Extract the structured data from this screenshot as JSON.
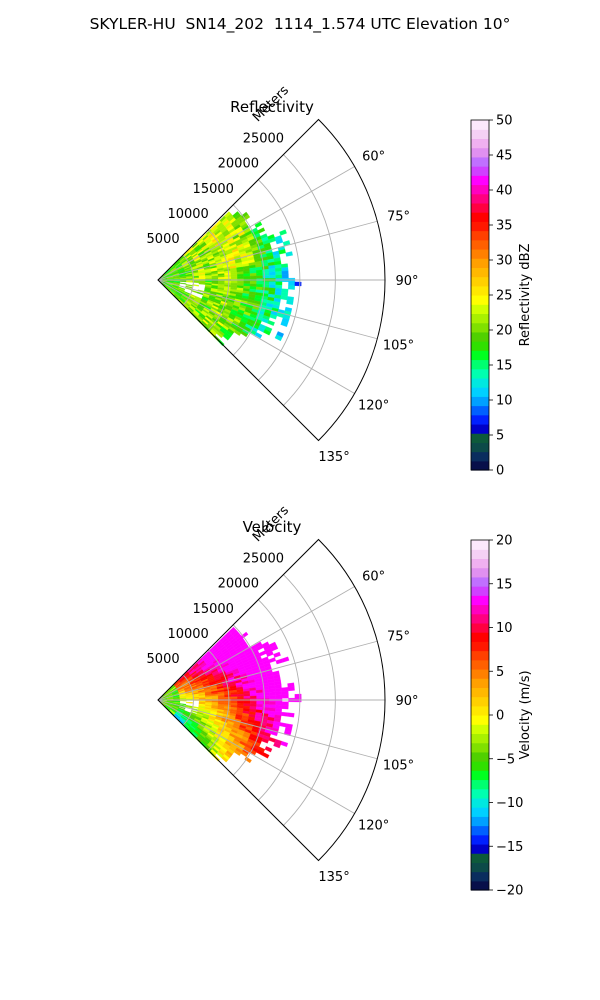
{
  "title": "SKYLER-HU  SN14_202  1114_1.574 UTC Elevation 10°",
  "chart_data": [
    {
      "type": "heatmap",
      "subtype": "polar-sector",
      "title": "Reflectivity",
      "radial_label": "Meters",
      "radial_ticks": [
        "5000",
        "10000",
        "15000",
        "20000",
        "25000"
      ],
      "rmax": 32000,
      "theta_range_deg": [
        45,
        135
      ],
      "angle_ticks": [
        "60°",
        "75°",
        "90°",
        "105°",
        "120°",
        "135°"
      ],
      "grid": true,
      "colorbar": {
        "label": "Reflectivity dBZ",
        "min": 0,
        "max": 50,
        "ticks": [
          "0",
          "5",
          "10",
          "15",
          "20",
          "25",
          "30",
          "35",
          "40",
          "45",
          "50"
        ],
        "colors": [
          "#08104a",
          "#0a2d5e",
          "#0c4a48",
          "#0d5a3a",
          "#0000c8",
          "#0020ff",
          "#0060ff",
          "#00a0ff",
          "#00d0ff",
          "#00e8e0",
          "#00ffb0",
          "#00ff70",
          "#00ff20",
          "#30e000",
          "#50d000",
          "#80e000",
          "#a8f000",
          "#d0ff00",
          "#ffff00",
          "#ffe800",
          "#ffd000",
          "#ffb800",
          "#ffa000",
          "#ff8000",
          "#ff6000",
          "#ff4000",
          "#ff1800",
          "#ff0000",
          "#ff0040",
          "#ff0080",
          "#ff00c0",
          "#ff00ff",
          "#d040ff",
          "#c070ff",
          "#e090f0",
          "#f0b0f0",
          "#f5d0f5",
          "#fbe8fb"
        ]
      },
      "field_description": "values range ~12-28 dBZ"
    },
    {
      "type": "heatmap",
      "subtype": "polar-sector",
      "title": "Velocity",
      "radial_label": "Meters",
      "radial_ticks": [
        "5000",
        "10000",
        "15000",
        "20000",
        "25000"
      ],
      "rmax": 32000,
      "theta_range_deg": [
        45,
        135
      ],
      "angle_ticks": [
        "60°",
        "75°",
        "90°",
        "105°",
        "120°",
        "135°"
      ],
      "grid": true,
      "colorbar": {
        "label": "Velocity (m/s)",
        "min": -20,
        "max": 20,
        "ticks": [
          "−20",
          "−15",
          "−10",
          "−5",
          "0",
          "5",
          "10",
          "15",
          "20"
        ],
        "colors": [
          "#08104a",
          "#0a2d5e",
          "#0c4a48",
          "#0d5a3a",
          "#0000c8",
          "#0020ff",
          "#0060ff",
          "#00a0ff",
          "#00d0ff",
          "#00e8e0",
          "#00ffb0",
          "#00ff70",
          "#00ff20",
          "#30e000",
          "#50d000",
          "#80e000",
          "#a8f000",
          "#d0ff00",
          "#ffff00",
          "#ffe800",
          "#ffd000",
          "#ffb800",
          "#ffa000",
          "#ff8000",
          "#ff6000",
          "#ff4000",
          "#ff1800",
          "#ff0000",
          "#ff0040",
          "#ff0080",
          "#ff00c0",
          "#ff00ff",
          "#d040ff",
          "#c070ff",
          "#e090f0",
          "#f0b0f0",
          "#f5d0f5",
          "#fbe8fb"
        ]
      },
      "field_description": "values range ~-8 to 12 m/s"
    }
  ]
}
